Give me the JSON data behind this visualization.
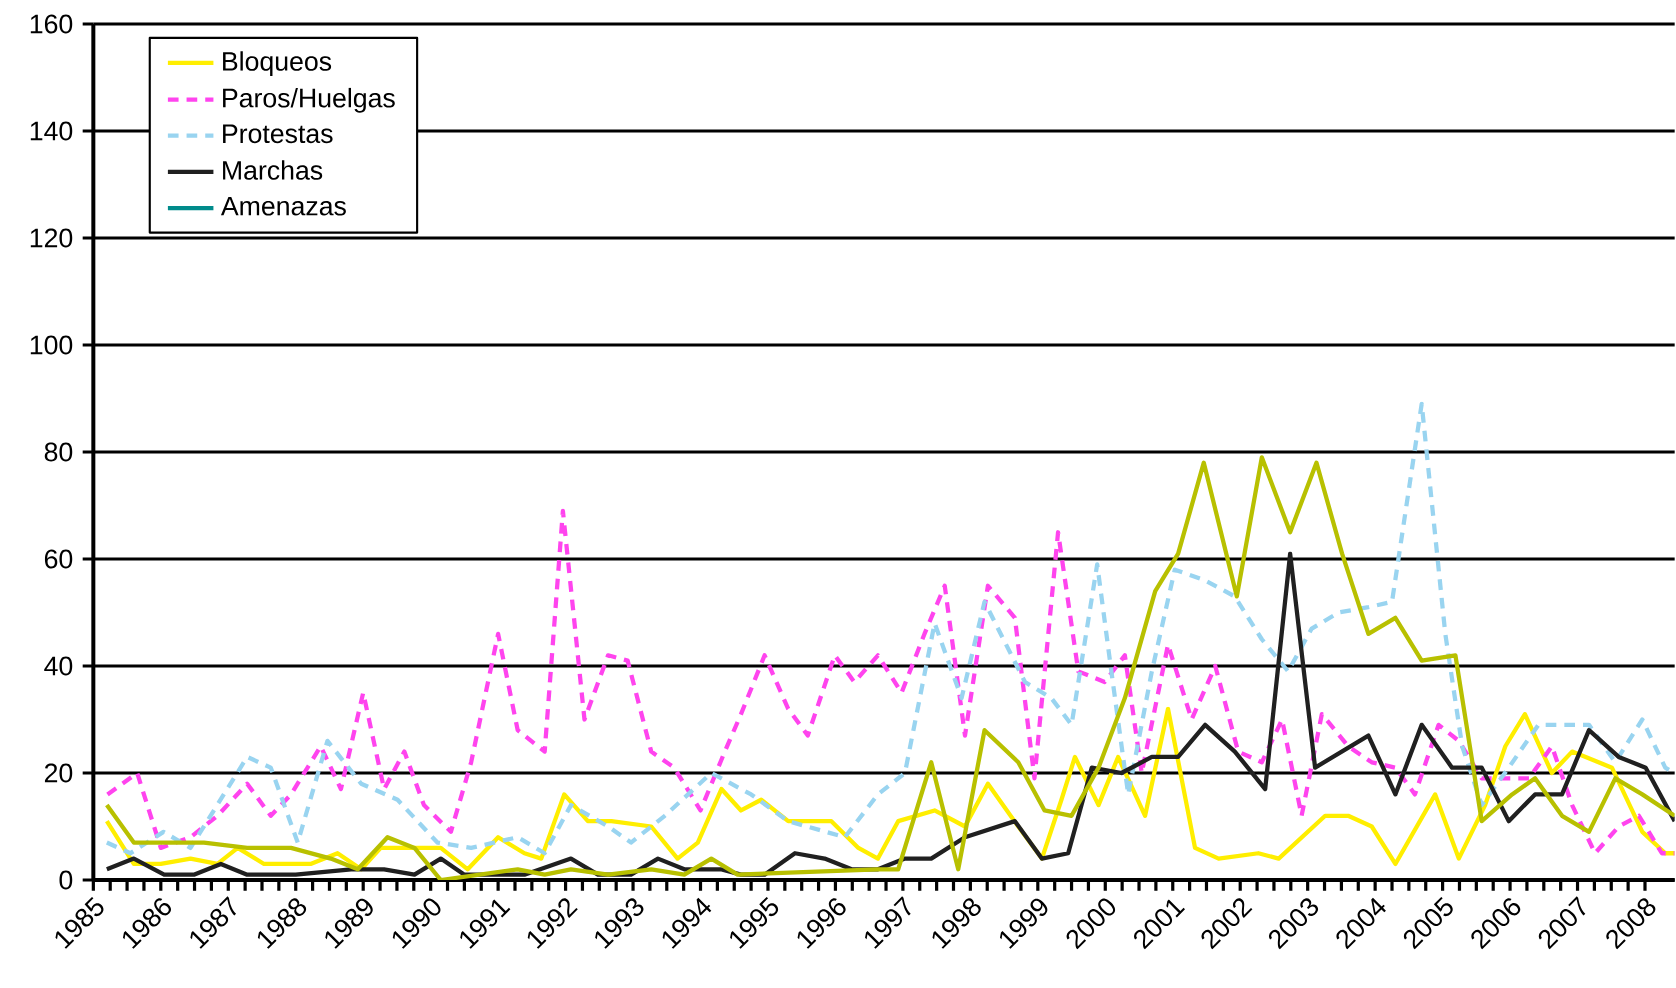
{
  "chart_data": {
    "type": "line",
    "xlim": [
      1985,
      2008.44
    ],
    "ylim": [
      0,
      160
    ],
    "xticks": [
      1985,
      1986,
      1987,
      1988,
      1989,
      1990,
      1991,
      1992,
      1993,
      1994,
      1995,
      1996,
      1997,
      1998,
      1999,
      2000,
      2001,
      2002,
      2003,
      2004,
      2005,
      2006,
      2007,
      2008
    ],
    "yticks": [
      0,
      20,
      40,
      60,
      80,
      100,
      120,
      140,
      160
    ],
    "grid": "y",
    "legend": "top left",
    "series": [
      {
        "name": "Bloqueos",
        "color": "#ffee00",
        "line_style": "solid",
        "x": [
          1985.2,
          1985.6,
          1986.0,
          1986.44,
          1986.84,
          1987.14,
          1987.53,
          1988.22,
          1988.62,
          1988.97,
          1989.26,
          1989.76,
          1990.15,
          1990.55,
          1991.0,
          1991.39,
          1991.64,
          1991.98,
          1992.33,
          1992.68,
          1993.27,
          1993.66,
          1993.96,
          1994.31,
          1994.6,
          1994.9,
          1995.3,
          1995.94,
          1996.34,
          1996.63,
          1996.93,
          1997.47,
          1997.92,
          1998.26,
          1998.71,
          1999.06,
          1999.35,
          1999.55,
          1999.9,
          2000.19,
          2000.59,
          2000.93,
          2001.33,
          2001.68,
          2002.27,
          2002.57,
          2003.26,
          2003.6,
          2003.95,
          2004.3,
          2004.89,
          2005.24,
          2005.63,
          2005.93,
          2006.22,
          2006.62,
          2006.92,
          2007.51,
          2007.96,
          2008.3,
          2008.44
        ],
        "values": [
          11,
          3,
          3,
          4,
          3,
          6,
          3,
          3,
          5,
          2,
          6,
          6,
          6,
          2,
          8,
          5,
          4,
          16,
          11,
          11,
          10,
          4,
          7,
          17,
          13,
          15,
          11,
          11,
          6,
          4,
          11,
          13,
          10,
          18,
          10,
          4,
          15,
          23,
          14,
          23,
          12,
          32,
          6,
          4,
          5,
          4,
          12,
          12,
          10,
          3,
          16,
          4,
          14,
          25,
          31,
          20,
          24,
          21,
          9,
          5,
          5
        ]
      },
      {
        "name": "Paros/Huelgas",
        "color": "#ff44ee",
        "line_style": "dashed",
        "x": [
          1985.21,
          1985.65,
          1986.0,
          1986.44,
          1986.84,
          1987.28,
          1987.63,
          1987.93,
          1988.37,
          1988.67,
          1989.0,
          1989.31,
          1989.61,
          1989.9,
          1990.3,
          1990.6,
          1991.0,
          1991.29,
          1991.69,
          1991.96,
          1992.28,
          1992.63,
          1992.92,
          1993.27,
          1993.61,
          1994.0,
          1994.36,
          1994.6,
          1994.95,
          1995.3,
          1995.59,
          1995.99,
          1996.28,
          1996.63,
          1996.98,
          1997.32,
          1997.62,
          1997.92,
          1998.26,
          1998.66,
          1998.95,
          1999.3,
          1999.6,
          1999.99,
          2000.29,
          2000.54,
          2000.93,
          2001.28,
          2001.63,
          2001.97,
          2002.32,
          2002.62,
          2002.91,
          2003.21,
          2003.6,
          2003.95,
          2004.3,
          2004.59,
          2004.94,
          2005.24,
          2005.58,
          2005.93,
          2006.28,
          2006.62,
          2006.92,
          2007.26,
          2007.61,
          2007.91,
          2008.25,
          2008.44
        ],
        "values": [
          16,
          20,
          6,
          8,
          12,
          18,
          12,
          16,
          25,
          17,
          35,
          17,
          24,
          14,
          9,
          22,
          46,
          28,
          24,
          69,
          30,
          42,
          41,
          24,
          21,
          13,
          24,
          31,
          42,
          32,
          27,
          42,
          37,
          42,
          35,
          46,
          55,
          27,
          55,
          49,
          19,
          65,
          39,
          37,
          42,
          20,
          44,
          30,
          40,
          24,
          22,
          30,
          12,
          31,
          25,
          22,
          21,
          16,
          29,
          26,
          19,
          19,
          19,
          25,
          14,
          5,
          10,
          12,
          5,
          5
        ]
      },
      {
        "name": "Protestas",
        "color": "#99d4f0",
        "line_style": "dashed",
        "x": [
          1985.2,
          1985.55,
          1986.04,
          1986.44,
          1987.28,
          1987.63,
          1988.03,
          1988.47,
          1988.97,
          1989.51,
          1990.1,
          1990.6,
          1991.29,
          1991.69,
          1992.08,
          1992.63,
          1992.97,
          1993.47,
          1994.16,
          1994.75,
          1995.3,
          1996.14,
          1996.63,
          1997.03,
          1997.47,
          1997.87,
          1998.21,
          1998.81,
          1999.2,
          1999.5,
          1999.88,
          2000.09,
          2000.34,
          2000.69,
          2001.03,
          2001.48,
          2001.92,
          2002.32,
          2002.71,
          2003.06,
          2003.46,
          2003.9,
          2004.25,
          2004.69,
          2005.04,
          2005.29,
          2005.58,
          2005.98,
          2006.42,
          2006.82,
          2007.17,
          2007.56,
          2007.96,
          2008.3,
          2008.44
        ],
        "values": [
          7,
          5,
          9,
          6,
          23,
          21,
          7,
          26,
          18,
          15,
          7,
          6,
          8,
          5,
          14,
          10,
          7,
          12,
          20,
          16,
          11,
          8,
          16,
          20,
          48,
          34,
          52,
          37,
          34,
          29,
          59,
          39,
          16,
          39,
          58,
          56,
          53,
          45,
          39,
          47,
          50,
          51,
          52,
          89,
          46,
          25,
          14,
          21,
          29,
          29,
          29,
          22,
          30,
          21,
          20
        ]
      },
      {
        "name": "Marchas",
        "color": "#202020",
        "line_style": "solid",
        "x": [
          1985.2,
          1985.6,
          1986.05,
          1986.49,
          1986.89,
          1987.28,
          1988.0,
          1988.82,
          1989.31,
          1989.76,
          1990.15,
          1990.5,
          1991.39,
          1992.08,
          1992.48,
          1992.97,
          1993.37,
          1993.76,
          1994.3,
          1994.6,
          1994.95,
          1995.4,
          1995.84,
          1996.24,
          1996.63,
          1997.03,
          1997.42,
          1997.92,
          1998.66,
          1999.06,
          1999.45,
          1999.8,
          2000.24,
          2000.69,
          2001.08,
          2001.48,
          2001.92,
          2002.37,
          2002.74,
          2003.11,
          2003.9,
          2004.3,
          2004.69,
          2005.14,
          2005.58,
          2005.98,
          2006.37,
          2006.77,
          2007.17,
          2007.61,
          2008.01,
          2008.44
        ],
        "values": [
          2,
          4,
          1,
          1,
          3,
          1,
          1,
          2,
          2,
          1,
          4,
          1,
          1,
          4,
          1,
          1,
          4,
          2,
          2,
          1,
          1,
          5,
          4,
          2,
          2,
          4,
          4,
          8,
          11,
          4,
          5,
          21,
          20,
          23,
          23,
          29,
          24,
          17,
          61,
          21,
          27,
          16,
          29,
          21,
          21,
          11,
          16,
          16,
          28,
          23,
          21,
          11
        ]
      },
      {
        "name": "Amenazas",
        "color": "#008b8b",
        "line_style": "solid"
      },
      {
        "color": "#b8c000",
        "line_style": "solid",
        "x": [
          1985.2,
          1985.6,
          1986.64,
          1987.28,
          1987.93,
          1988.52,
          1988.92,
          1989.36,
          1989.76,
          1990.15,
          1991.29,
          1991.69,
          1992.08,
          1992.63,
          1993.27,
          1993.76,
          1994.16,
          1994.55,
          1996.63,
          1996.93,
          1997.42,
          1997.82,
          1998.21,
          1998.71,
          1999.1,
          1999.5,
          1999.9,
          2000.29,
          2000.74,
          2001.08,
          2001.46,
          2001.95,
          2002.32,
          2002.74,
          2003.13,
          2003.51,
          2003.9,
          2004.3,
          2004.69,
          2005.19,
          2005.58,
          2006.03,
          2006.37,
          2006.77,
          2007.17,
          2007.56,
          2007.96,
          2008.44
        ],
        "values": [
          14,
          7,
          7,
          6,
          6,
          4,
          2,
          8,
          6,
          0,
          2,
          1,
          2,
          1,
          2,
          1,
          4,
          1,
          2,
          2,
          22,
          2,
          28,
          22,
          13,
          12,
          21,
          34,
          54,
          61,
          78,
          53,
          79,
          65,
          78,
          61,
          46,
          49,
          41,
          42,
          11,
          16,
          19,
          12,
          9,
          19,
          16,
          12
        ]
      }
    ]
  }
}
